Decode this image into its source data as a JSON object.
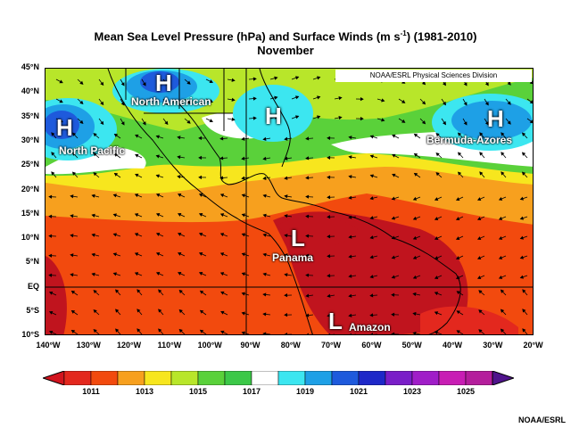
{
  "title": {
    "line1_main": "Mean Sea Level Pressure (hPa) and Surface Winds (m s",
    "line1_sup": "-1",
    "line1_end": ") (1981-2010)",
    "line2": "November"
  },
  "credit_box": "NOAA/ESRL Physical Sciences Division",
  "footer": "NOAA/ESRL",
  "lat_labels": [
    "45°N",
    "40°N",
    "35°N",
    "30°N",
    "25°N",
    "20°N",
    "15°N",
    "10°N",
    "5°N",
    "EQ",
    "5°S",
    "10°S"
  ],
  "lon_labels": [
    "140°W",
    "130°W",
    "120°W",
    "110°W",
    "100°W",
    "90°W",
    "80°W",
    "70°W",
    "60°W",
    "50°W",
    "40°W",
    "30°W",
    "20°W"
  ],
  "pressure_centers": [
    {
      "type": "H",
      "name": "North Pacific"
    },
    {
      "type": "H",
      "name": "North American"
    },
    {
      "type": "H",
      "name": ""
    },
    {
      "type": "H",
      "name": "Bermuda-Azores"
    },
    {
      "type": "L",
      "name": "Panama"
    },
    {
      "type": "L",
      "name": "Amazon"
    }
  ],
  "colorbar": {
    "labels": [
      "1011",
      "1013",
      "1015",
      "1017",
      "1019",
      "1021",
      "1023",
      "1025"
    ],
    "colors": [
      "#e3281e",
      "#f24a0e",
      "#f7a01e",
      "#f7e61e",
      "#b8e62a",
      "#5ad13a",
      "#3cc848",
      "#ffffff",
      "#3ce6f0",
      "#1ea0e6",
      "#1e5adc",
      "#1e28c8",
      "#7a1ec8",
      "#a01ec8",
      "#c81eb4",
      "#b41e9c"
    ],
    "left_color": "#d2141e",
    "right_color": "#50148c"
  },
  "legend_colors": {
    "deep_low": "#c0141e",
    "low": "#e3281e",
    "mid_low": "#f24a0e",
    "orange": "#f7a01e",
    "yellow": "#f7e61e",
    "green": "#5ad13a",
    "white": "#ffffff",
    "cyan": "#3ce6f0",
    "blue": "#1e5adc"
  }
}
